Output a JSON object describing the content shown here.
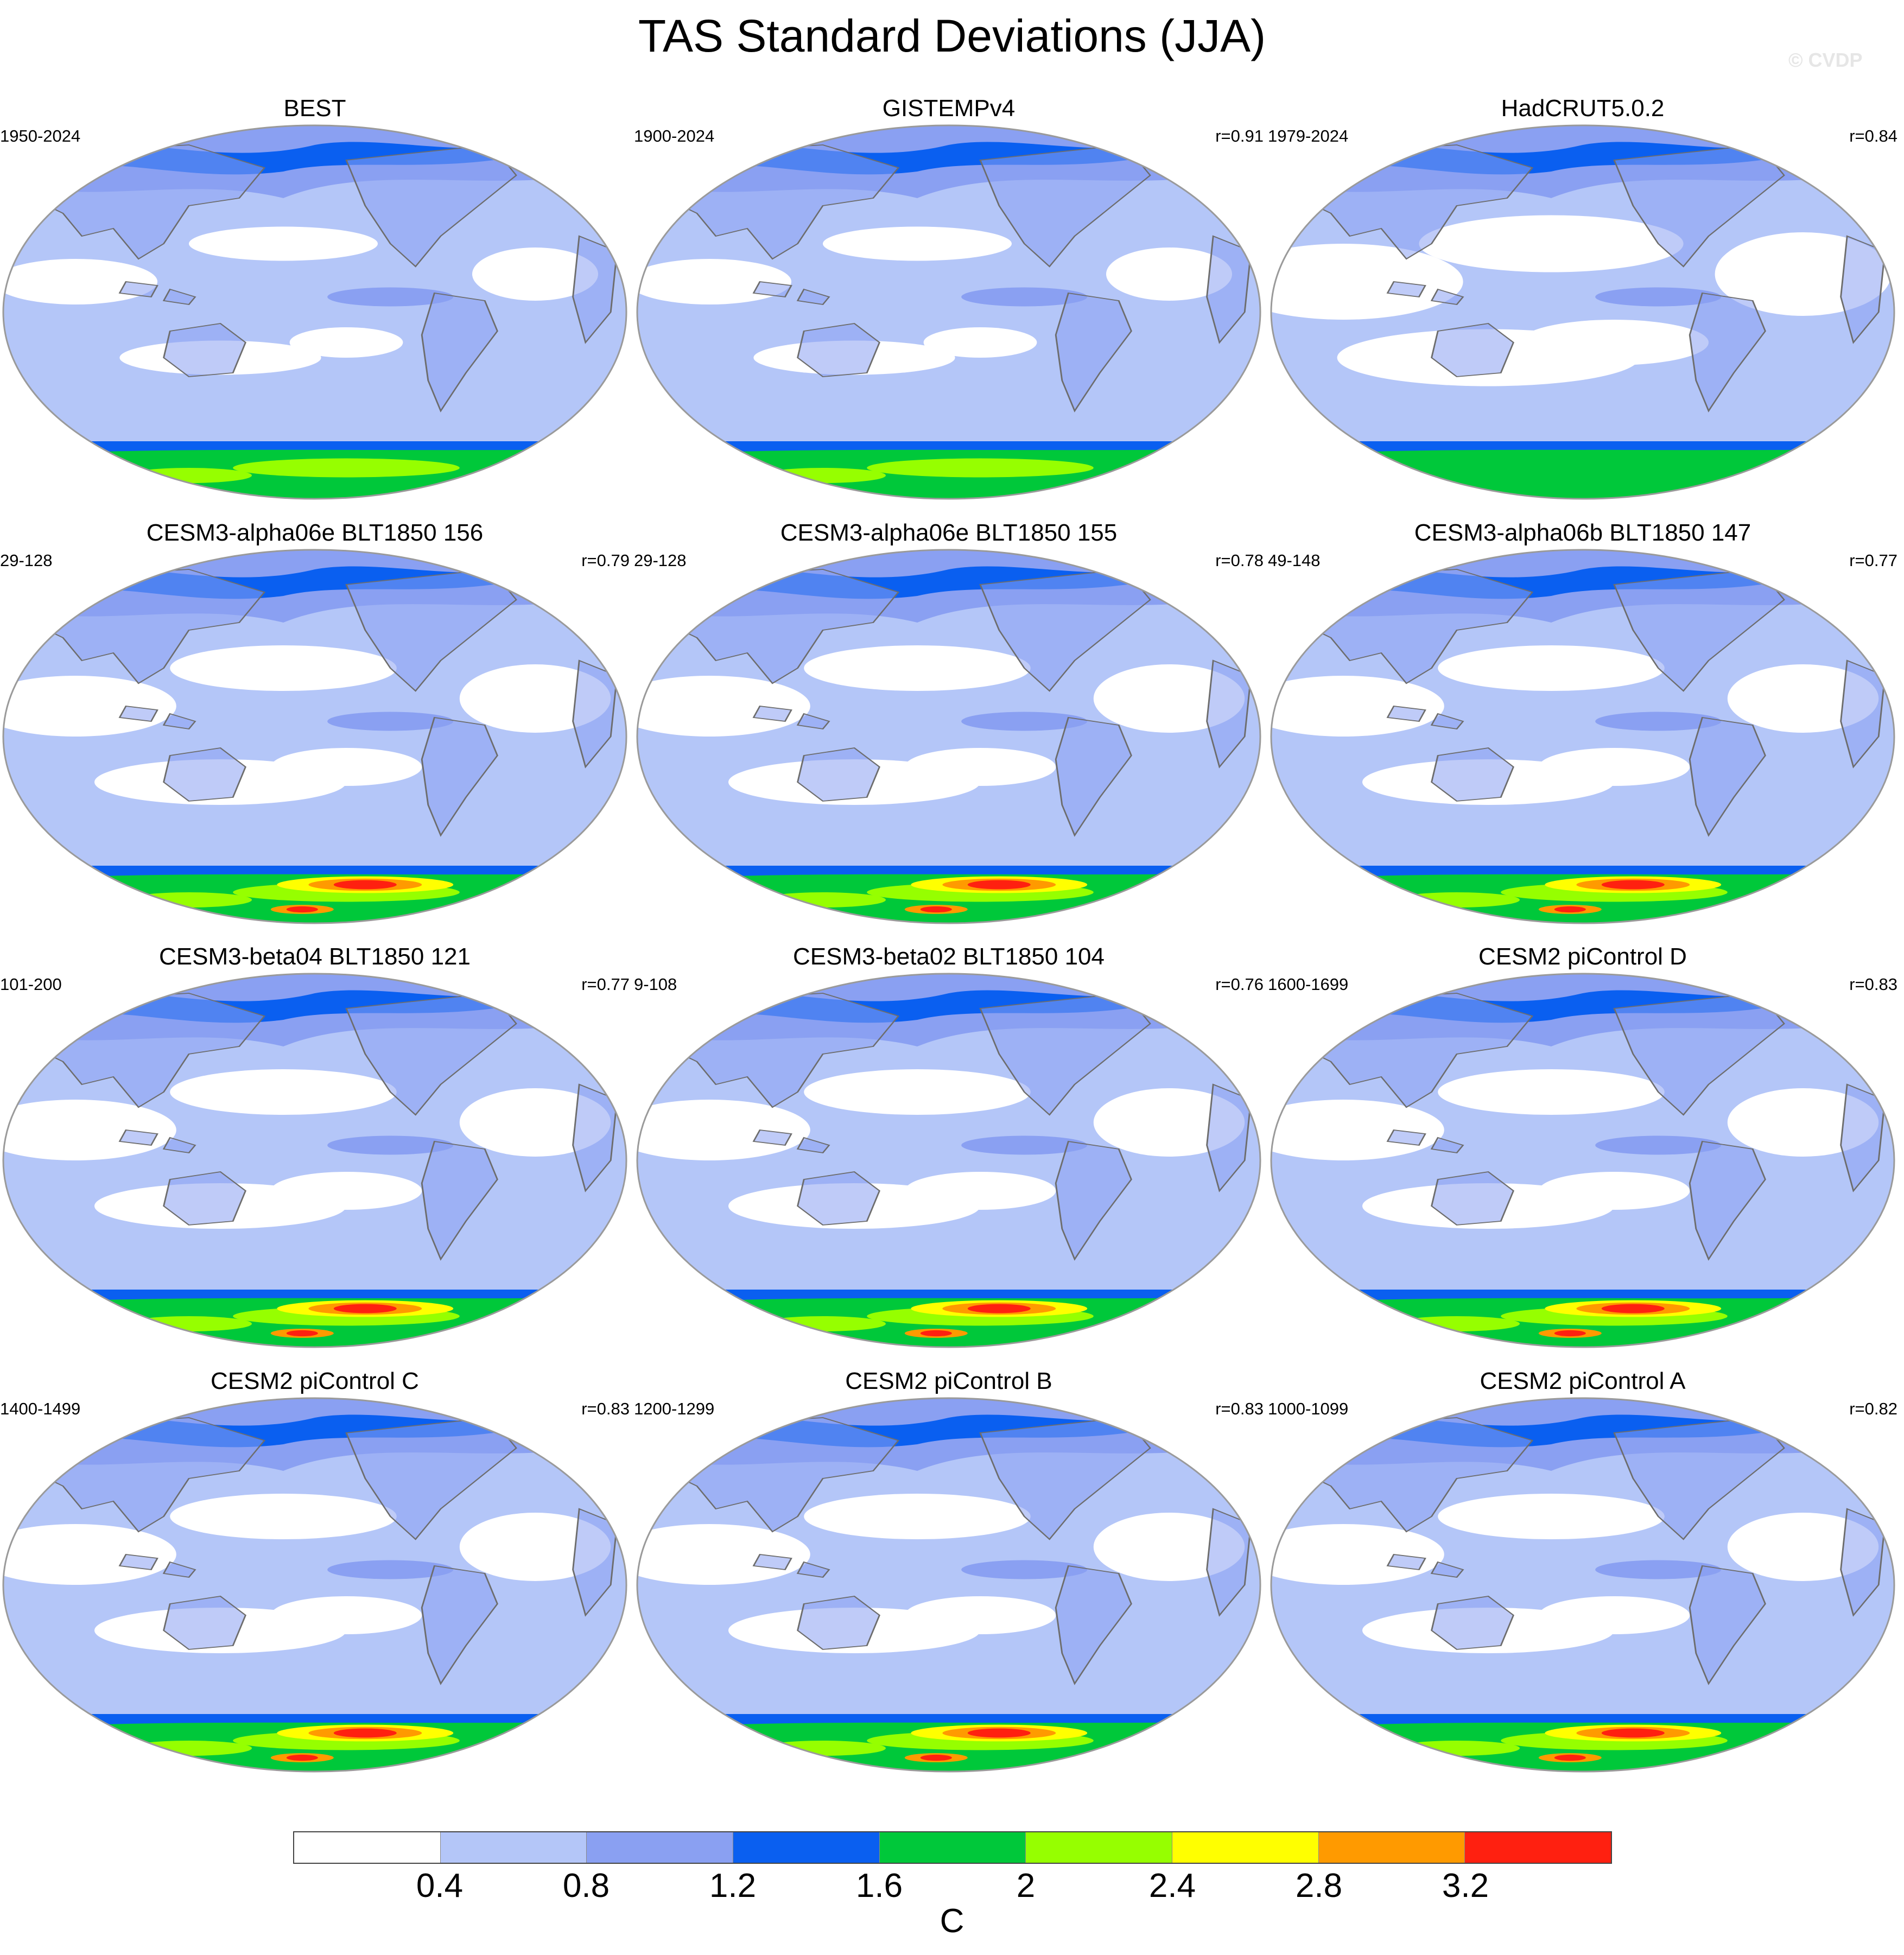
{
  "title": "TAS Standard Deviations (JJA)",
  "watermark": "© CVDP",
  "colors": {
    "levels": [
      "#ffffff",
      "#b4c6f8",
      "#8aa0f2",
      "#0a5ff0",
      "#00c83a",
      "#96ff00",
      "#ffff00",
      "#ff9a00",
      "#ff2010"
    ],
    "ocean_bg": "#b4c6f8",
    "coastline": "#6d6d6d",
    "map_border": "#9a9a9a"
  },
  "colorbar": {
    "labels": [
      "0.4",
      "0.8",
      "1.2",
      "1.6",
      "2",
      "2.4",
      "2.8",
      "3.2"
    ],
    "unit": "C"
  },
  "panels": [
    {
      "title": "BEST",
      "period": "1950-2024",
      "corr": "",
      "polar_intensity": 2,
      "white_amount": 1
    },
    {
      "title": "GISTEMPv4",
      "period": "1900-2024",
      "corr": "r=0.91",
      "polar_intensity": 2,
      "white_amount": 1
    },
    {
      "title": "HadCRUT5.0.2",
      "period": "1979-2024",
      "corr": "r=0.84",
      "polar_intensity": 1,
      "white_amount": 3
    },
    {
      "title": "CESM3-alpha06e BLT1850 156",
      "period": "29-128",
      "corr": "r=0.79",
      "polar_intensity": 3,
      "white_amount": 2
    },
    {
      "title": "CESM3-alpha06e BLT1850 155",
      "period": "29-128",
      "corr": "r=0.78",
      "polar_intensity": 3,
      "white_amount": 2
    },
    {
      "title": "CESM3-alpha06b BLT1850 147",
      "period": "49-148",
      "corr": "r=0.77",
      "polar_intensity": 3,
      "white_amount": 2
    },
    {
      "title": "CESM3-beta04 BLT1850 121",
      "period": "101-200",
      "corr": "r=0.77",
      "polar_intensity": 3,
      "white_amount": 2
    },
    {
      "title": "CESM3-beta02 BLT1850 104",
      "period": "9-108",
      "corr": "r=0.76",
      "polar_intensity": 3,
      "white_amount": 2
    },
    {
      "title": "CESM2 piControl D",
      "period": "1600-1699",
      "corr": "r=0.83",
      "polar_intensity": 3,
      "white_amount": 2
    },
    {
      "title": "CESM2 piControl C",
      "period": "1400-1499",
      "corr": "r=0.83",
      "polar_intensity": 3,
      "white_amount": 2
    },
    {
      "title": "CESM2 piControl B",
      "period": "1200-1299",
      "corr": "r=0.83",
      "polar_intensity": 3,
      "white_amount": 2
    },
    {
      "title": "CESM2 piControl A",
      "period": "1000-1099",
      "corr": "r=0.82",
      "polar_intensity": 3,
      "white_amount": 2
    }
  ]
}
